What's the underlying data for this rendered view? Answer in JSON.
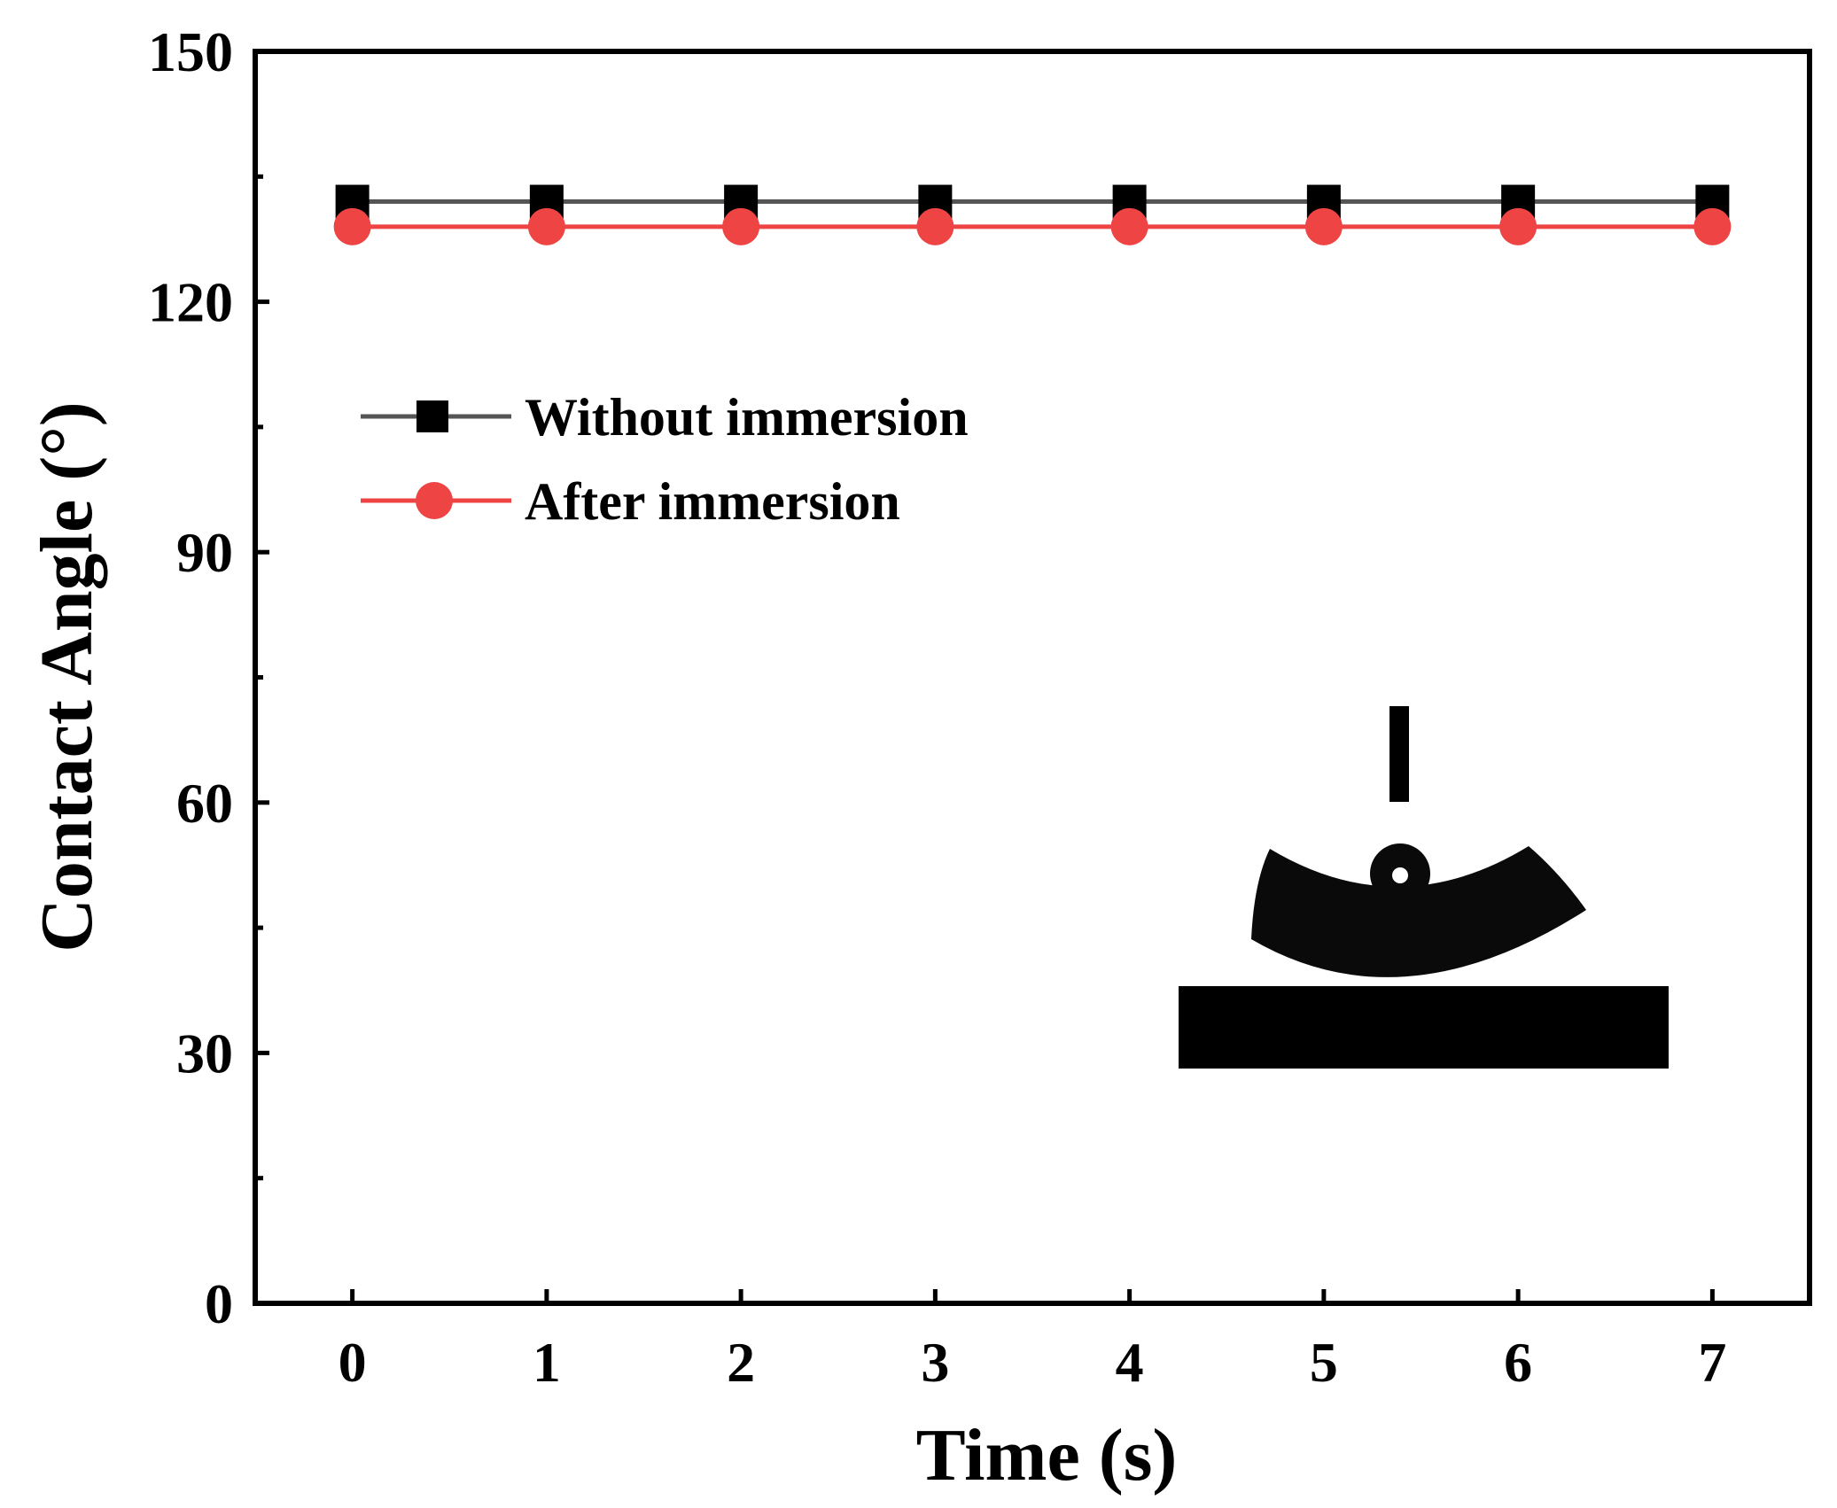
{
  "chart_data": {
    "type": "line",
    "title": "",
    "xlabel": "Time (s)",
    "ylabel": "Contact Angle (°)",
    "xlim": [
      -0.5,
      7.5
    ],
    "ylim": [
      0,
      150
    ],
    "x_ticks": [
      0,
      1,
      2,
      3,
      4,
      5,
      6,
      7
    ],
    "y_ticks": [
      0,
      30,
      60,
      90,
      120,
      150
    ],
    "x": [
      0,
      1,
      2,
      3,
      4,
      5,
      6,
      7
    ],
    "series": [
      {
        "name": "Without immersion",
        "values": [
          132,
          132,
          132,
          132,
          132,
          132,
          132,
          132
        ],
        "marker": "square",
        "line_color": "#555555",
        "marker_color": "#000000"
      },
      {
        "name": "After immersion",
        "values": [
          129,
          129,
          129,
          129,
          129,
          129,
          129,
          129
        ],
        "marker": "circle",
        "line_color": "#ee4444",
        "marker_color": "#ee4444"
      }
    ],
    "legend_position": "upper-left",
    "grid": false,
    "inset": "droplet-on-curved-substrate-photo"
  }
}
